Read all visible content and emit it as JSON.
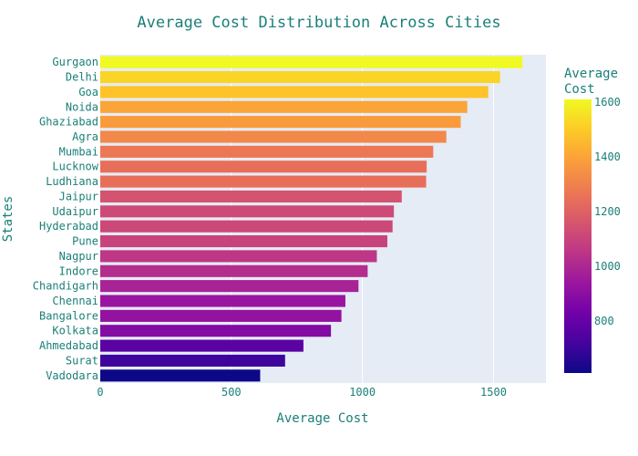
{
  "chart_data": {
    "type": "bar",
    "orientation": "horizontal",
    "title": "Average Cost Distribution Across Cities",
    "xlabel": "Average Cost",
    "ylabel": "States",
    "xlim": [
      0,
      1700
    ],
    "xticks": [
      0,
      500,
      1000,
      1500
    ],
    "grid": true,
    "categories": [
      "Gurgaon",
      "Delhi",
      "Goa",
      "Noida",
      "Ghaziabad",
      "Agra",
      "Mumbai",
      "Lucknow",
      "Ludhiana",
      "Jaipur",
      "Udaipur",
      "Hyderabad",
      "Pune",
      "Nagpur",
      "Indore",
      "Chandigarh",
      "Chennai",
      "Bangalore",
      "Kolkata",
      "Ahmedabad",
      "Surat",
      "Vadodara"
    ],
    "values": [
      1610,
      1525,
      1480,
      1400,
      1375,
      1320,
      1270,
      1245,
      1243,
      1150,
      1120,
      1115,
      1095,
      1055,
      1020,
      985,
      935,
      920,
      880,
      775,
      705,
      610
    ],
    "colorbar": {
      "title_lines": [
        "Average",
        "Cost"
      ],
      "range": [
        610,
        1610
      ],
      "ticks": [
        800,
        1000,
        1200,
        1400,
        1600
      ],
      "colorscale": [
        "#0d0887",
        "#46039f",
        "#7201a8",
        "#9c179e",
        "#bd3786",
        "#d8576b",
        "#ed7953",
        "#fb9f3a",
        "#fdca26",
        "#f0f921"
      ]
    }
  }
}
